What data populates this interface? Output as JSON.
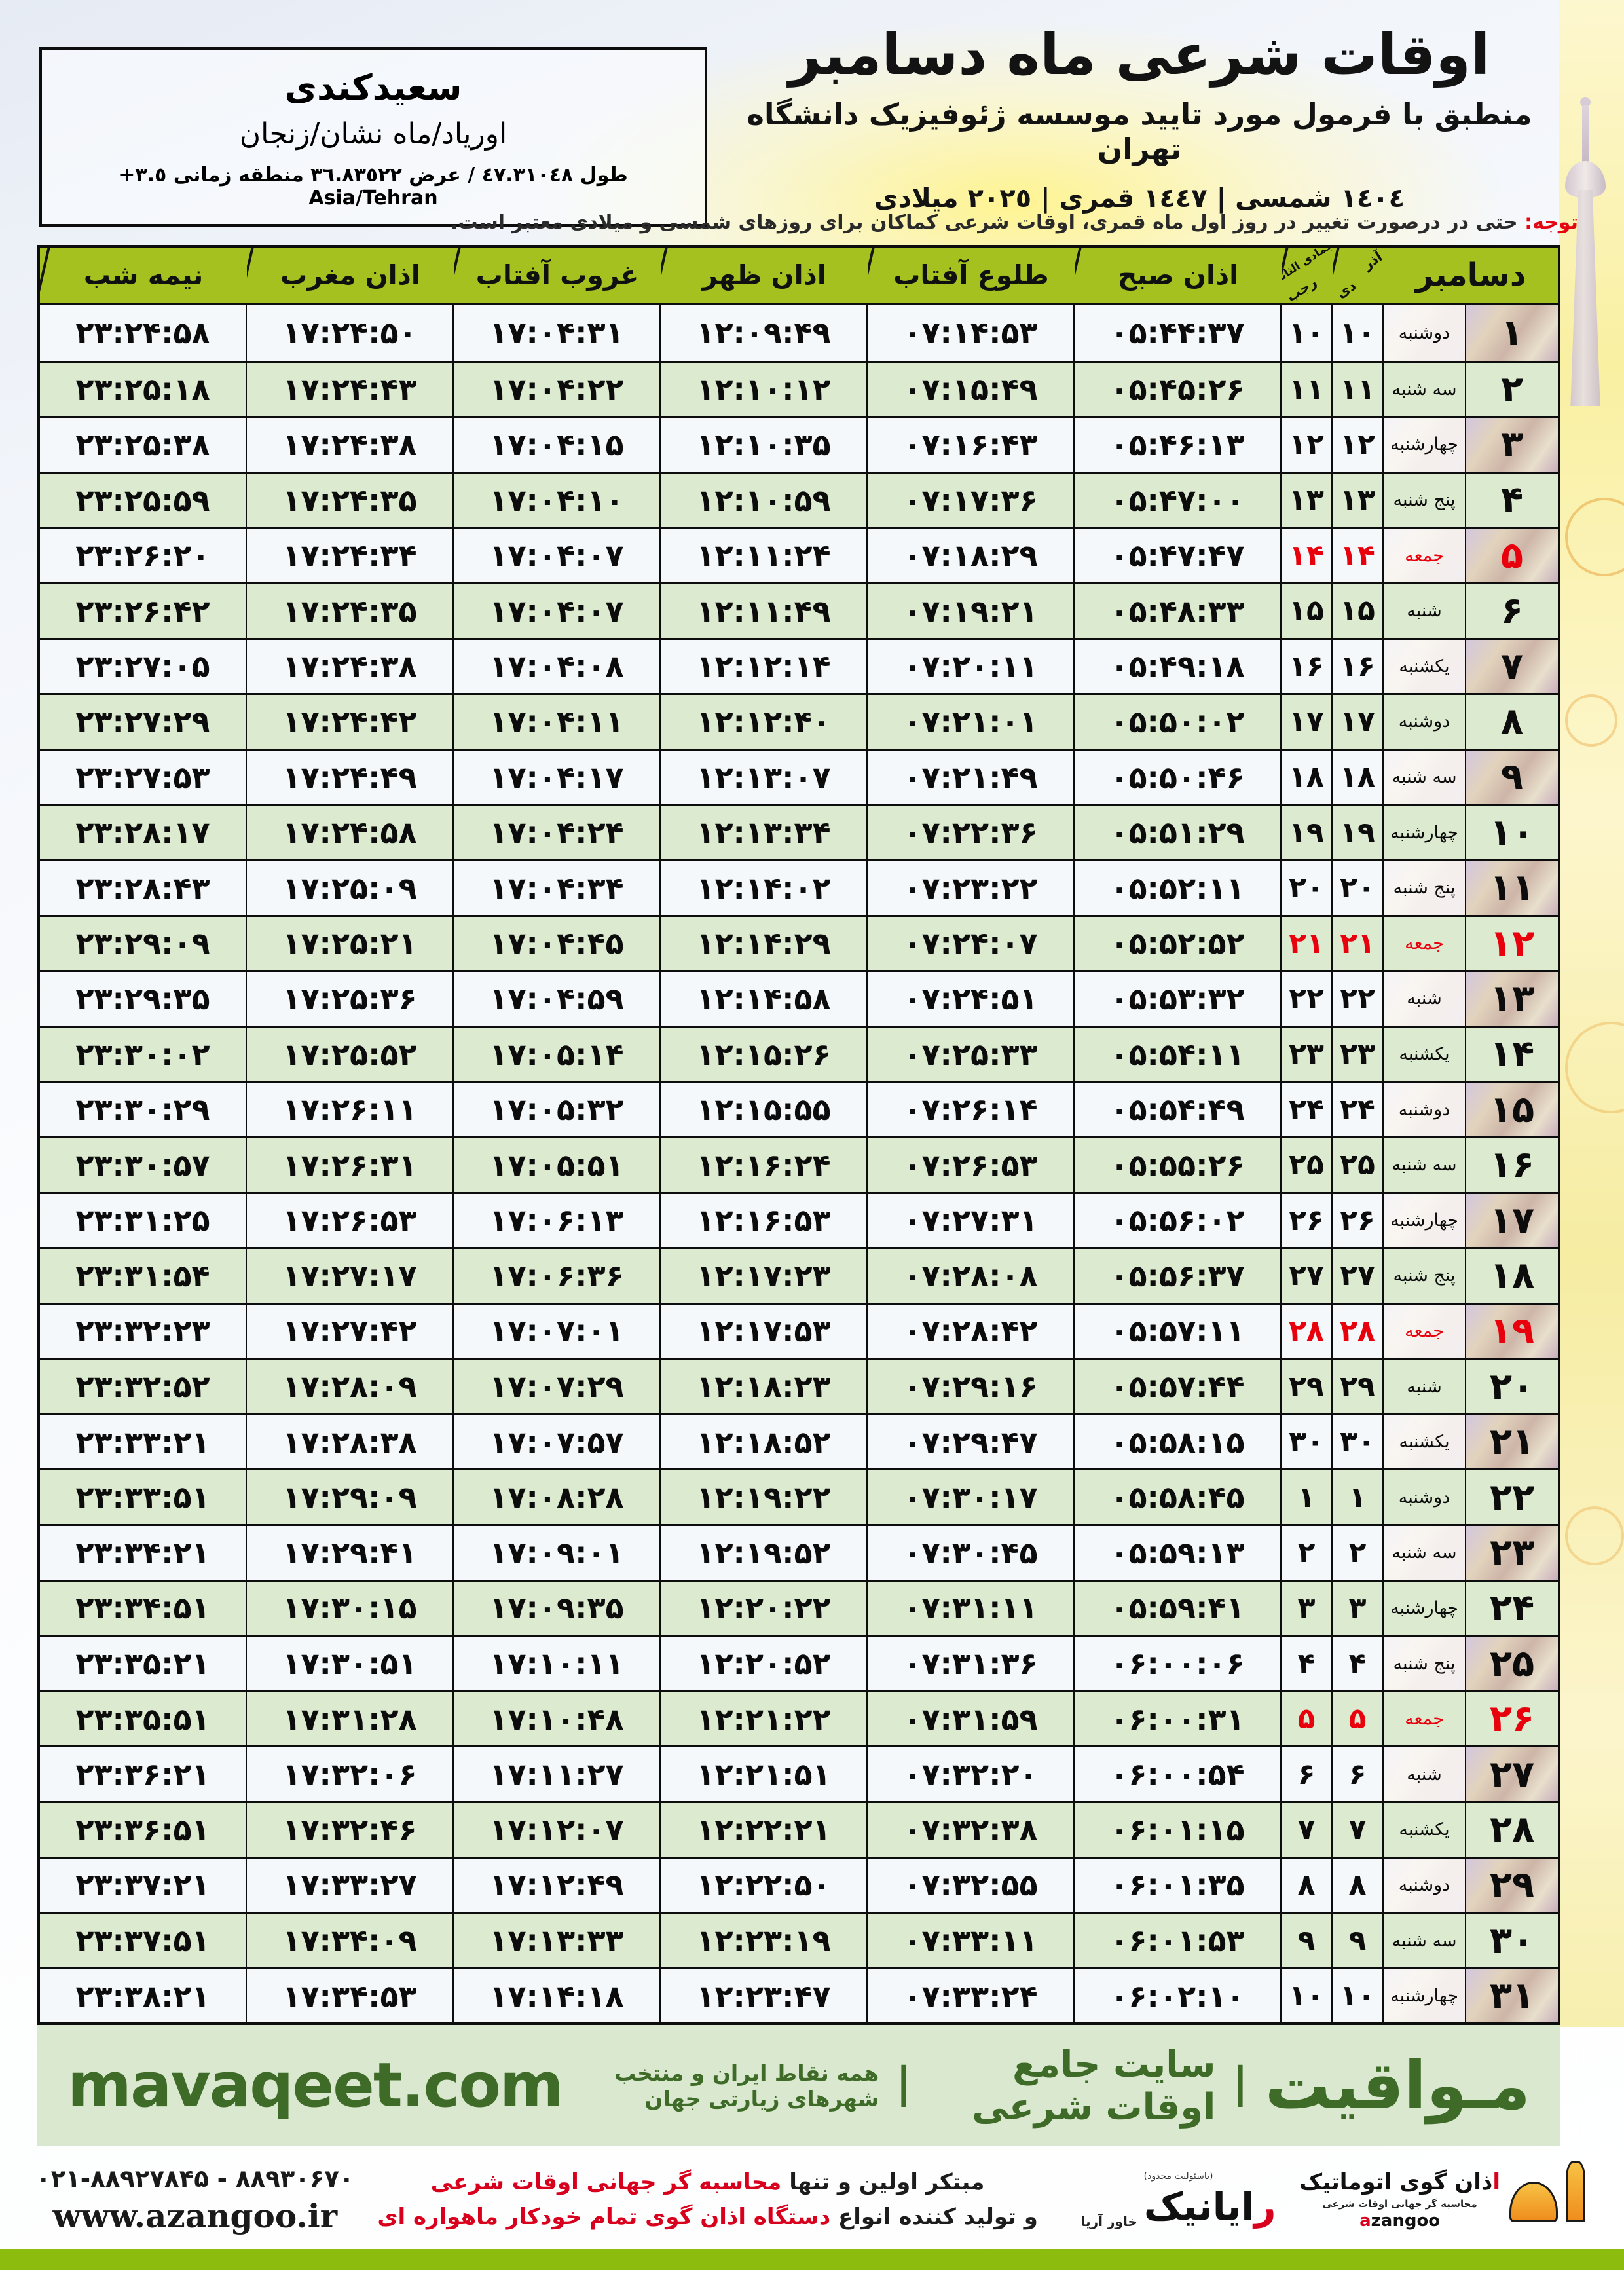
{
  "header": {
    "title": "اوقات شرعی ماه دسامبر",
    "subtitle": "منطبق با فرمول مورد تایید موسسه ژئوفیزیک دانشگاه تهران",
    "era_line": "١٤٠٤ شمسی | ١٤٤٧ قمری | ٢٠٢٥ میلادی"
  },
  "location": {
    "city": "سعیدکندی",
    "region": "اورياد/ماه نشان/زنجان",
    "coordinates": "طول ٤٧.٣١٠٤٨ / عرض ٣٦.٨٣٥٢٢ منطقه زمانی ‪+٣.٥‬ Asia/Tehran"
  },
  "notice": {
    "label": "توجه:",
    "text": " حتی در درصورت تغییر در روز اول ماه قمری، اوقات شرعی کماکان برای روزهای شمسی و میلادی معتبر است."
  },
  "table": {
    "columns": {
      "december": "دسامبر",
      "solar_top": "آذر",
      "solar_bottom": "دی",
      "lunar_top": "جمادی الثانی",
      "lunar_bottom": "رجب",
      "fajr": "اذان صبح",
      "sunrise": "طلوع آفتاب",
      "dhuhr": "اذان ظهر",
      "sunset": "غروب آفتاب",
      "maghrib": "اذان مغرب",
      "midnight": "نیمه شب"
    },
    "rows": [
      {
        "dec": "۱",
        "weekday": "دوشنبه",
        "solar": "۱۰",
        "lunar": "۱۰",
        "fajr": "۰۵:۴۴:۳۷",
        "sunrise": "۰۷:۱۴:۵۳",
        "dhuhr": "۱۲:۰۹:۴۹",
        "sunset": "۱۷:۰۴:۳۱",
        "maghrib": "۱۷:۲۴:۵۰",
        "midnight": "۲۳:۲۴:۵۸",
        "friday": false
      },
      {
        "dec": "۲",
        "weekday": "سه شنبه",
        "solar": "۱۱",
        "lunar": "۱۱",
        "fajr": "۰۵:۴۵:۲۶",
        "sunrise": "۰۷:۱۵:۴۹",
        "dhuhr": "۱۲:۱۰:۱۲",
        "sunset": "۱۷:۰۴:۲۲",
        "maghrib": "۱۷:۲۴:۴۳",
        "midnight": "۲۳:۲۵:۱۸",
        "friday": false
      },
      {
        "dec": "۳",
        "weekday": "چهارشنبه",
        "solar": "۱۲",
        "lunar": "۱۲",
        "fajr": "۰۵:۴۶:۱۳",
        "sunrise": "۰۷:۱۶:۴۳",
        "dhuhr": "۱۲:۱۰:۳۵",
        "sunset": "۱۷:۰۴:۱۵",
        "maghrib": "۱۷:۲۴:۳۸",
        "midnight": "۲۳:۲۵:۳۸",
        "friday": false
      },
      {
        "dec": "۴",
        "weekday": "پنج شنبه",
        "solar": "۱۳",
        "lunar": "۱۳",
        "fajr": "۰۵:۴۷:۰۰",
        "sunrise": "۰۷:۱۷:۳۶",
        "dhuhr": "۱۲:۱۰:۵۹",
        "sunset": "۱۷:۰۴:۱۰",
        "maghrib": "۱۷:۲۴:۳۵",
        "midnight": "۲۳:۲۵:۵۹",
        "friday": false
      },
      {
        "dec": "۵",
        "weekday": "جمعه",
        "solar": "۱۴",
        "lunar": "۱۴",
        "fajr": "۰۵:۴۷:۴۷",
        "sunrise": "۰۷:۱۸:۲۹",
        "dhuhr": "۱۲:۱۱:۲۴",
        "sunset": "۱۷:۰۴:۰۷",
        "maghrib": "۱۷:۲۴:۳۴",
        "midnight": "۲۳:۲۶:۲۰",
        "friday": true
      },
      {
        "dec": "۶",
        "weekday": "شنبه",
        "solar": "۱۵",
        "lunar": "۱۵",
        "fajr": "۰۵:۴۸:۳۳",
        "sunrise": "۰۷:۱۹:۲۱",
        "dhuhr": "۱۲:۱۱:۴۹",
        "sunset": "۱۷:۰۴:۰۷",
        "maghrib": "۱۷:۲۴:۳۵",
        "midnight": "۲۳:۲۶:۴۲",
        "friday": false
      },
      {
        "dec": "۷",
        "weekday": "یکشنبه",
        "solar": "۱۶",
        "lunar": "۱۶",
        "fajr": "۰۵:۴۹:۱۸",
        "sunrise": "۰۷:۲۰:۱۱",
        "dhuhr": "۱۲:۱۲:۱۴",
        "sunset": "۱۷:۰۴:۰۸",
        "maghrib": "۱۷:۲۴:۳۸",
        "midnight": "۲۳:۲۷:۰۵",
        "friday": false
      },
      {
        "dec": "۸",
        "weekday": "دوشنبه",
        "solar": "۱۷",
        "lunar": "۱۷",
        "fajr": "۰۵:۵۰:۰۲",
        "sunrise": "۰۷:۲۱:۰۱",
        "dhuhr": "۱۲:۱۲:۴۰",
        "sunset": "۱۷:۰۴:۱۱",
        "maghrib": "۱۷:۲۴:۴۲",
        "midnight": "۲۳:۲۷:۲۹",
        "friday": false
      },
      {
        "dec": "۹",
        "weekday": "سه شنبه",
        "solar": "۱۸",
        "lunar": "۱۸",
        "fajr": "۰۵:۵۰:۴۶",
        "sunrise": "۰۷:۲۱:۴۹",
        "dhuhr": "۱۲:۱۳:۰۷",
        "sunset": "۱۷:۰۴:۱۷",
        "maghrib": "۱۷:۲۴:۴۹",
        "midnight": "۲۳:۲۷:۵۳",
        "friday": false
      },
      {
        "dec": "۱۰",
        "weekday": "چهارشنبه",
        "solar": "۱۹",
        "lunar": "۱۹",
        "fajr": "۰۵:۵۱:۲۹",
        "sunrise": "۰۷:۲۲:۳۶",
        "dhuhr": "۱۲:۱۳:۳۴",
        "sunset": "۱۷:۰۴:۲۴",
        "maghrib": "۱۷:۲۴:۵۸",
        "midnight": "۲۳:۲۸:۱۷",
        "friday": false
      },
      {
        "dec": "۱۱",
        "weekday": "پنج شنبه",
        "solar": "۲۰",
        "lunar": "۲۰",
        "fajr": "۰۵:۵۲:۱۱",
        "sunrise": "۰۷:۲۳:۲۲",
        "dhuhr": "۱۲:۱۴:۰۲",
        "sunset": "۱۷:۰۴:۳۴",
        "maghrib": "۱۷:۲۵:۰۹",
        "midnight": "۲۳:۲۸:۴۳",
        "friday": false
      },
      {
        "dec": "۱۲",
        "weekday": "جمعه",
        "solar": "۲۱",
        "lunar": "۲۱",
        "fajr": "۰۵:۵۲:۵۲",
        "sunrise": "۰۷:۲۴:۰۷",
        "dhuhr": "۱۲:۱۴:۲۹",
        "sunset": "۱۷:۰۴:۴۵",
        "maghrib": "۱۷:۲۵:۲۱",
        "midnight": "۲۳:۲۹:۰۹",
        "friday": true
      },
      {
        "dec": "۱۳",
        "weekday": "شنبه",
        "solar": "۲۲",
        "lunar": "۲۲",
        "fajr": "۰۵:۵۳:۳۲",
        "sunrise": "۰۷:۲۴:۵۱",
        "dhuhr": "۱۲:۱۴:۵۸",
        "sunset": "۱۷:۰۴:۵۹",
        "maghrib": "۱۷:۲۵:۳۶",
        "midnight": "۲۳:۲۹:۳۵",
        "friday": false
      },
      {
        "dec": "۱۴",
        "weekday": "یکشنبه",
        "solar": "۲۳",
        "lunar": "۲۳",
        "fajr": "۰۵:۵۴:۱۱",
        "sunrise": "۰۷:۲۵:۳۳",
        "dhuhr": "۱۲:۱۵:۲۶",
        "sunset": "۱۷:۰۵:۱۴",
        "maghrib": "۱۷:۲۵:۵۲",
        "midnight": "۲۳:۳۰:۰۲",
        "friday": false
      },
      {
        "dec": "۱۵",
        "weekday": "دوشنبه",
        "solar": "۲۴",
        "lunar": "۲۴",
        "fajr": "۰۵:۵۴:۴۹",
        "sunrise": "۰۷:۲۶:۱۴",
        "dhuhr": "۱۲:۱۵:۵۵",
        "sunset": "۱۷:۰۵:۳۲",
        "maghrib": "۱۷:۲۶:۱۱",
        "midnight": "۲۳:۳۰:۲۹",
        "friday": false
      },
      {
        "dec": "۱۶",
        "weekday": "سه شنبه",
        "solar": "۲۵",
        "lunar": "۲۵",
        "fajr": "۰۵:۵۵:۲۶",
        "sunrise": "۰۷:۲۶:۵۳",
        "dhuhr": "۱۲:۱۶:۲۴",
        "sunset": "۱۷:۰۵:۵۱",
        "maghrib": "۱۷:۲۶:۳۱",
        "midnight": "۲۳:۳۰:۵۷",
        "friday": false
      },
      {
        "dec": "۱۷",
        "weekday": "چهارشنبه",
        "solar": "۲۶",
        "lunar": "۲۶",
        "fajr": "۰۵:۵۶:۰۲",
        "sunrise": "۰۷:۲۷:۳۱",
        "dhuhr": "۱۲:۱۶:۵۳",
        "sunset": "۱۷:۰۶:۱۳",
        "maghrib": "۱۷:۲۶:۵۳",
        "midnight": "۲۳:۳۱:۲۵",
        "friday": false
      },
      {
        "dec": "۱۸",
        "weekday": "پنج شنبه",
        "solar": "۲۷",
        "lunar": "۲۷",
        "fajr": "۰۵:۵۶:۳۷",
        "sunrise": "۰۷:۲۸:۰۸",
        "dhuhr": "۱۲:۱۷:۲۳",
        "sunset": "۱۷:۰۶:۳۶",
        "maghrib": "۱۷:۲۷:۱۷",
        "midnight": "۲۳:۳۱:۵۴",
        "friday": false
      },
      {
        "dec": "۱۹",
        "weekday": "جمعه",
        "solar": "۲۸",
        "lunar": "۲۸",
        "fajr": "۰۵:۵۷:۱۱",
        "sunrise": "۰۷:۲۸:۴۲",
        "dhuhr": "۱۲:۱۷:۵۳",
        "sunset": "۱۷:۰۷:۰۱",
        "maghrib": "۱۷:۲۷:۴۲",
        "midnight": "۲۳:۳۲:۲۳",
        "friday": true
      },
      {
        "dec": "۲۰",
        "weekday": "شنبه",
        "solar": "۲۹",
        "lunar": "۲۹",
        "fajr": "۰۵:۵۷:۴۴",
        "sunrise": "۰۷:۲۹:۱۶",
        "dhuhr": "۱۲:۱۸:۲۳",
        "sunset": "۱۷:۰۷:۲۹",
        "maghrib": "۱۷:۲۸:۰۹",
        "midnight": "۲۳:۳۲:۵۲",
        "friday": false
      },
      {
        "dec": "۲۱",
        "weekday": "یکشنبه",
        "solar": "۳۰",
        "lunar": "۳۰",
        "fajr": "۰۵:۵۸:۱۵",
        "sunrise": "۰۷:۲۹:۴۷",
        "dhuhr": "۱۲:۱۸:۵۲",
        "sunset": "۱۷:۰۷:۵۷",
        "maghrib": "۱۷:۲۸:۳۸",
        "midnight": "۲۳:۳۳:۲۱",
        "friday": false
      },
      {
        "dec": "۲۲",
        "weekday": "دوشنبه",
        "solar": "۱",
        "lunar": "۱",
        "fajr": "۰۵:۵۸:۴۵",
        "sunrise": "۰۷:۳۰:۱۷",
        "dhuhr": "۱۲:۱۹:۲۲",
        "sunset": "۱۷:۰۸:۲۸",
        "maghrib": "۱۷:۲۹:۰۹",
        "midnight": "۲۳:۳۳:۵۱",
        "friday": false
      },
      {
        "dec": "۲۳",
        "weekday": "سه شنبه",
        "solar": "۲",
        "lunar": "۲",
        "fajr": "۰۵:۵۹:۱۳",
        "sunrise": "۰۷:۳۰:۴۵",
        "dhuhr": "۱۲:۱۹:۵۲",
        "sunset": "۱۷:۰۹:۰۱",
        "maghrib": "۱۷:۲۹:۴۱",
        "midnight": "۲۳:۳۴:۲۱",
        "friday": false
      },
      {
        "dec": "۲۴",
        "weekday": "چهارشنبه",
        "solar": "۳",
        "lunar": "۳",
        "fajr": "۰۵:۵۹:۴۱",
        "sunrise": "۰۷:۳۱:۱۱",
        "dhuhr": "۱۲:۲۰:۲۲",
        "sunset": "۱۷:۰۹:۳۵",
        "maghrib": "۱۷:۳۰:۱۵",
        "midnight": "۲۳:۳۴:۵۱",
        "friday": false
      },
      {
        "dec": "۲۵",
        "weekday": "پنج شنبه",
        "solar": "۴",
        "lunar": "۴",
        "fajr": "۰۶:۰۰:۰۶",
        "sunrise": "۰۷:۳۱:۳۶",
        "dhuhr": "۱۲:۲۰:۵۲",
        "sunset": "۱۷:۱۰:۱۱",
        "maghrib": "۱۷:۳۰:۵۱",
        "midnight": "۲۳:۳۵:۲۱",
        "friday": false
      },
      {
        "dec": "۲۶",
        "weekday": "جمعه",
        "solar": "۵",
        "lunar": "۵",
        "fajr": "۰۶:۰۰:۳۱",
        "sunrise": "۰۷:۳۱:۵۹",
        "dhuhr": "۱۲:۲۱:۲۲",
        "sunset": "۱۷:۱۰:۴۸",
        "maghrib": "۱۷:۳۱:۲۸",
        "midnight": "۲۳:۳۵:۵۱",
        "friday": true
      },
      {
        "dec": "۲۷",
        "weekday": "شنبه",
        "solar": "۶",
        "lunar": "۶",
        "fajr": "۰۶:۰۰:۵۴",
        "sunrise": "۰۷:۳۲:۲۰",
        "dhuhr": "۱۲:۲۱:۵۱",
        "sunset": "۱۷:۱۱:۲۷",
        "maghrib": "۱۷:۳۲:۰۶",
        "midnight": "۲۳:۳۶:۲۱",
        "friday": false
      },
      {
        "dec": "۲۸",
        "weekday": "یکشنبه",
        "solar": "۷",
        "lunar": "۷",
        "fajr": "۰۶:۰۱:۱۵",
        "sunrise": "۰۷:۳۲:۳۸",
        "dhuhr": "۱۲:۲۲:۲۱",
        "sunset": "۱۷:۱۲:۰۷",
        "maghrib": "۱۷:۳۲:۴۶",
        "midnight": "۲۳:۳۶:۵۱",
        "friday": false
      },
      {
        "dec": "۲۹",
        "weekday": "دوشنبه",
        "solar": "۸",
        "lunar": "۸",
        "fajr": "۰۶:۰۱:۳۵",
        "sunrise": "۰۷:۳۲:۵۵",
        "dhuhr": "۱۲:۲۲:۵۰",
        "sunset": "۱۷:۱۲:۴۹",
        "maghrib": "۱۷:۳۳:۲۷",
        "midnight": "۲۳:۳۷:۲۱",
        "friday": false
      },
      {
        "dec": "۳۰",
        "weekday": "سه شنبه",
        "solar": "۹",
        "lunar": "۹",
        "fajr": "۰۶:۰۱:۵۳",
        "sunrise": "۰۷:۳۳:۱۱",
        "dhuhr": "۱۲:۲۳:۱۹",
        "sunset": "۱۷:۱۳:۳۳",
        "maghrib": "۱۷:۳۴:۰۹",
        "midnight": "۲۳:۳۷:۵۱",
        "friday": false
      },
      {
        "dec": "۳۱",
        "weekday": "چهارشنبه",
        "solar": "۱۰",
        "lunar": "۱۰",
        "fajr": "۰۶:۰۲:۱۰",
        "sunrise": "۰۷:۳۳:۲۴",
        "dhuhr": "۱۲:۲۳:۴۷",
        "sunset": "۱۷:۱۴:۱۸",
        "maghrib": "۱۷:۳۴:۵۳",
        "midnight": "۲۳:۳۸:۲۱",
        "friday": false
      }
    ]
  },
  "banner": {
    "brand": "مـواقیت",
    "sep": "|",
    "site_desc": "سایت جامع اوقات شرعی",
    "coverage": "همه نقاط ایران و منتخب شهرهای زیارتی جهان",
    "url": "mavaqeet.com"
  },
  "footer": {
    "phone": "۰۲۱-۸۸۹۲۷۸۴۵ - ۸۸۹۳۰۶۷۰",
    "website": "www.azangoo.ir",
    "slogan_line1_black": "مبتکر اولین و تنها ",
    "slogan_line1_red": "محاسبه گر جهانی اوقات شرعی",
    "slogan_line2_black": "و تولید کننده انواع ",
    "slogan_line2_red": "دستگاه اذان گوی تمام خودکار ماهواره ای",
    "rayanik_note": "(باسئولیت محدود)",
    "rayanik_name": "رایانیک",
    "rayanik_sub": "خاور آریا",
    "azangoo_fa": "اذان گوی اتوماتیک",
    "azangoo_sub": "محاسبه گر جهانی اوقات شرعی",
    "azangoo_en": "azangoo"
  },
  "colors": {
    "header_green": "#a5c120",
    "row_alt_green": "#dcead0",
    "friday_red": "#e8000d",
    "banner_bg": "#d9e8cf",
    "brand_green": "#3e6b27",
    "bottom_bar_green": "#8cbd0e"
  }
}
